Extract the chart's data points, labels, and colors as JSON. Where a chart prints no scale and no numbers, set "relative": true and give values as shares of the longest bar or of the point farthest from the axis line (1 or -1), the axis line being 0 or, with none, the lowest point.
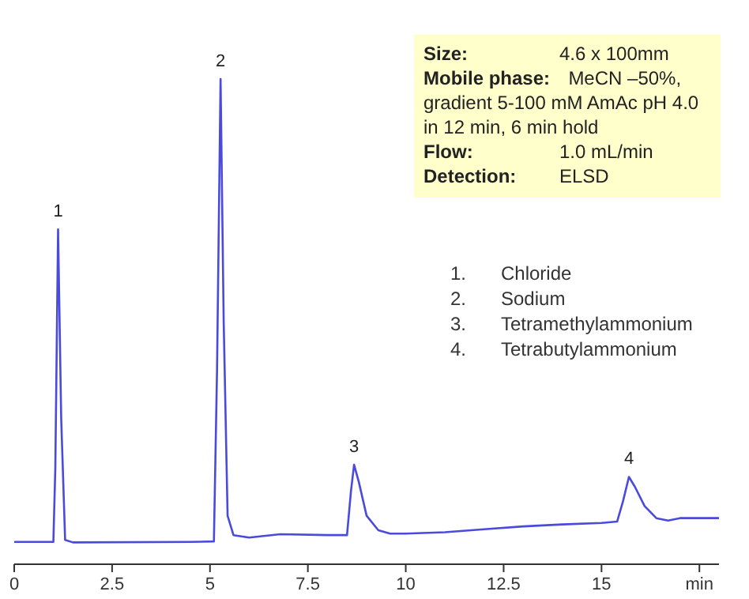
{
  "chart_data": {
    "type": "line",
    "relative": true,
    "xlim": [
      0,
      18
    ],
    "xticks": [
      0,
      2.5,
      5,
      7.5,
      10,
      12.5,
      15,
      {
        "value": 17.5,
        "label": "min"
      }
    ],
    "tick_labels": "x",
    "x": [
      0,
      1.0,
      1.05,
      1.12,
      1.2,
      1.3,
      1.5,
      4.5,
      5.1,
      5.18,
      5.27,
      5.35,
      5.45,
      5.6,
      6,
      6.8,
      8,
      8.5,
      8.6,
      8.68,
      8.8,
      9.0,
      9.3,
      9.6,
      10,
      11,
      12,
      13,
      14,
      15,
      15.4,
      15.55,
      15.7,
      15.85,
      16.1,
      16.4,
      16.7,
      17,
      17.5,
      18
    ],
    "series": [
      {
        "color": "#4a4adc",
        "values": [
          0.046,
          0.046,
          0.2,
          0.69,
          0.3,
          0.05,
          0.045,
          0.046,
          0.047,
          0.4,
          1.0,
          0.5,
          0.1,
          0.06,
          0.055,
          0.062,
          0.06,
          0.06,
          0.15,
          0.205,
          0.17,
          0.1,
          0.07,
          0.063,
          0.063,
          0.066,
          0.072,
          0.078,
          0.082,
          0.085,
          0.088,
          0.13,
          0.18,
          0.16,
          0.12,
          0.095,
          0.09,
          0.095,
          0.095,
          0.095
        ]
      }
    ],
    "annotations": [
      {
        "text": "1",
        "x": 1.12,
        "y": 0.69
      },
      {
        "text": "2",
        "x": 5.27,
        "y": 1.0
      },
      {
        "text": "3",
        "x": 8.68,
        "y": 0.205
      },
      {
        "text": "4",
        "x": 15.7,
        "y": 0.18
      },
      "Size: 4.6 x 100mm",
      "Mobile phase: MeCN –50%,  gradient 5-100  mM AmAc pH 4.0 in 12 min, 6 min hold",
      "Flow: 1.0 mL/min",
      "Detection: ELSD",
      "1. Chloride",
      "2. Sodium",
      "3. Tetramethylammonium",
      "4. Tetrabutylammonium"
    ]
  }
}
